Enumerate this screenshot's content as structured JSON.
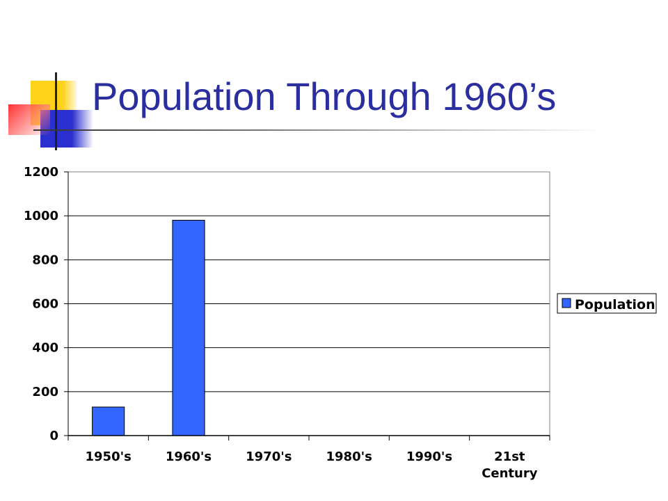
{
  "slide": {
    "title": "Population Through 1960’s"
  },
  "chart_data": {
    "type": "bar",
    "title": "",
    "xlabel": "",
    "ylabel": "",
    "categories": [
      "1950's",
      "1960's",
      "1970's",
      "1980's",
      "1990's",
      "21st Century"
    ],
    "series": [
      {
        "name": "Population",
        "values": [
          130,
          980,
          0,
          0,
          0,
          0
        ],
        "color": "#3366ff"
      }
    ],
    "ylim": [
      0,
      1200
    ],
    "yticks": [
      0,
      200,
      400,
      600,
      800,
      1000,
      1200
    ],
    "grid": true,
    "legend_position": "right"
  }
}
